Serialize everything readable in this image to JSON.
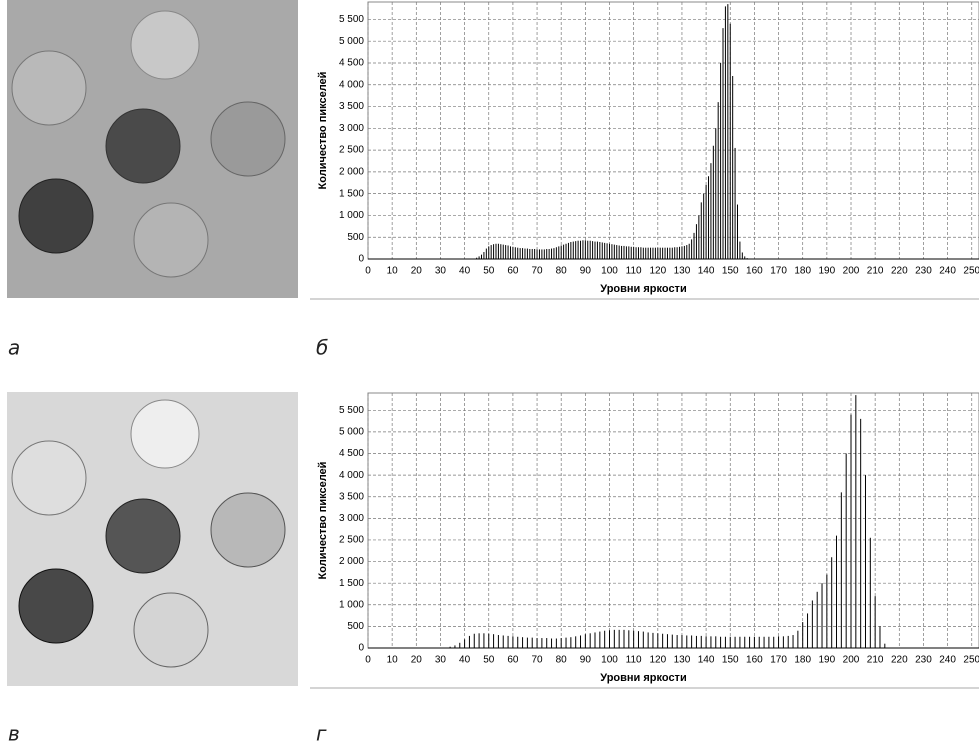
{
  "panel_labels": [
    "а",
    "б",
    "в",
    "г"
  ],
  "chart_data": [
    {
      "type": "histogram",
      "x_label": "Уровни яркости",
      "y_label": "Количество пикселей",
      "color": "#000000",
      "grid": true,
      "xlim": [
        0,
        253
      ],
      "ylim": [
        0,
        5900
      ],
      "xticks": [
        0,
        10,
        20,
        30,
        40,
        50,
        60,
        70,
        80,
        90,
        100,
        110,
        120,
        130,
        140,
        150,
        160,
        170,
        180,
        190,
        200,
        210,
        220,
        230,
        240,
        250
      ],
      "yticks": [
        0,
        500,
        {
          "value": 1000,
          "label": "1 000"
        },
        {
          "value": 1500,
          "label": "1 500"
        },
        {
          "value": 2000,
          "label": "2 000"
        },
        {
          "value": 2500,
          "label": "2 500"
        },
        {
          "value": 3000,
          "label": "3 000"
        },
        {
          "value": 3500,
          "label": "3 500"
        },
        {
          "value": 4000,
          "label": "4 000"
        },
        {
          "value": 4500,
          "label": "4 500"
        },
        {
          "value": 5000,
          "label": "5 000"
        },
        {
          "value": 5500,
          "label": "5 500"
        }
      ],
      "x": [
        45,
        46,
        47,
        48,
        49,
        50,
        51,
        52,
        53,
        54,
        55,
        56,
        57,
        58,
        59,
        60,
        61,
        62,
        63,
        64,
        65,
        66,
        67,
        68,
        69,
        70,
        71,
        72,
        73,
        74,
        75,
        76,
        77,
        78,
        79,
        80,
        81,
        82,
        83,
        84,
        85,
        86,
        87,
        88,
        89,
        90,
        91,
        92,
        93,
        94,
        95,
        96,
        97,
        98,
        99,
        100,
        101,
        102,
        103,
        104,
        105,
        106,
        107,
        108,
        109,
        110,
        111,
        112,
        113,
        114,
        115,
        116,
        117,
        118,
        119,
        120,
        121,
        122,
        123,
        124,
        125,
        126,
        127,
        128,
        129,
        130,
        131,
        132,
        133,
        134,
        135,
        136,
        137,
        138,
        139,
        140,
        141,
        142,
        143,
        144,
        145,
        146,
        147,
        148,
        149,
        150,
        151,
        152,
        153,
        154,
        155,
        156,
        157
      ],
      "values": [
        30,
        60,
        100,
        160,
        240,
        290,
        320,
        340,
        350,
        350,
        340,
        330,
        320,
        310,
        290,
        280,
        270,
        260,
        250,
        250,
        240,
        240,
        230,
        230,
        230,
        220,
        220,
        220,
        220,
        230,
        230,
        240,
        250,
        270,
        290,
        310,
        330,
        350,
        370,
        390,
        400,
        410,
        420,
        420,
        430,
        430,
        420,
        420,
        410,
        400,
        400,
        390,
        380,
        370,
        360,
        350,
        340,
        330,
        320,
        310,
        300,
        300,
        290,
        290,
        280,
        280,
        270,
        270,
        270,
        260,
        260,
        260,
        260,
        260,
        260,
        260,
        260,
        260,
        260,
        260,
        260,
        260,
        270,
        270,
        280,
        290,
        300,
        320,
        350,
        450,
        600,
        800,
        1000,
        1300,
        1500,
        1700,
        1900,
        2200,
        2600,
        3000,
        3600,
        4500,
        5300,
        5800,
        5850,
        5400,
        4200,
        2550,
        1250,
        400,
        150,
        60,
        20
      ]
    },
    {
      "type": "histogram",
      "x_label": "Уровни яркости",
      "y_label": "Количество пикселей",
      "color": "#000000",
      "grid": true,
      "xlim": [
        0,
        253
      ],
      "ylim": [
        0,
        5900
      ],
      "xticks": [
        0,
        10,
        20,
        30,
        40,
        50,
        60,
        70,
        80,
        90,
        100,
        110,
        120,
        130,
        140,
        150,
        160,
        170,
        180,
        190,
        200,
        210,
        220,
        230,
        240,
        250
      ],
      "yticks": [
        0,
        500,
        {
          "value": 1000,
          "label": "1 000"
        },
        {
          "value": 1500,
          "label": "1 500"
        },
        {
          "value": 2000,
          "label": "2 000"
        },
        {
          "value": 2500,
          "label": "2 500"
        },
        {
          "value": 3000,
          "label": "3 000"
        },
        {
          "value": 3500,
          "label": "3 500"
        },
        {
          "value": 4000,
          "label": "4 000"
        },
        {
          "value": 4500,
          "label": "4 500"
        },
        {
          "value": 5000,
          "label": "5 000"
        },
        {
          "value": 5500,
          "label": "5 500"
        }
      ],
      "x": [
        34,
        36,
        38,
        40,
        42,
        44,
        46,
        48,
        50,
        52,
        54,
        56,
        58,
        60,
        62,
        64,
        66,
        68,
        70,
        72,
        74,
        76,
        78,
        80,
        82,
        84,
        86,
        88,
        90,
        92,
        94,
        96,
        98,
        100,
        102,
        104,
        106,
        108,
        110,
        112,
        114,
        116,
        118,
        120,
        122,
        124,
        126,
        128,
        130,
        132,
        134,
        136,
        138,
        140,
        142,
        144,
        146,
        148,
        150,
        152,
        154,
        156,
        158,
        160,
        162,
        164,
        166,
        168,
        170,
        172,
        174,
        176,
        178,
        180,
        182,
        184,
        186,
        188,
        190,
        192,
        194,
        196,
        198,
        200,
        202,
        204,
        206,
        208,
        210,
        212,
        214
      ],
      "values": [
        30,
        60,
        120,
        200,
        280,
        330,
        340,
        340,
        330,
        320,
        300,
        290,
        280,
        270,
        260,
        250,
        240,
        240,
        230,
        230,
        230,
        220,
        220,
        230,
        240,
        250,
        270,
        290,
        320,
        340,
        360,
        380,
        400,
        410,
        420,
        420,
        420,
        410,
        400,
        390,
        380,
        360,
        350,
        340,
        330,
        320,
        310,
        300,
        300,
        290,
        290,
        280,
        280,
        270,
        270,
        270,
        260,
        260,
        260,
        260,
        260,
        260,
        260,
        260,
        260,
        260,
        260,
        260,
        270,
        270,
        280,
        300,
        400,
        600,
        800,
        1100,
        1300,
        1500,
        1700,
        2100,
        2600,
        3600,
        4500,
        5400,
        5850,
        5300,
        4000,
        2550,
        1200,
        500,
        100
      ]
    }
  ]
}
